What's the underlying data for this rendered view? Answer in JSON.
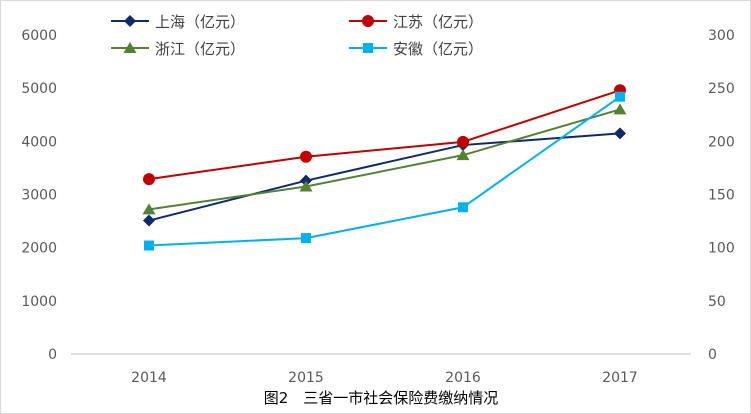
{
  "chart_data": {
    "type": "line",
    "title": "",
    "caption": "图2　三省一市社会保险费缴纳情况",
    "categories": [
      "2014",
      "2015",
      "2016",
      "2017"
    ],
    "left_axis": {
      "min": 0,
      "max": 6000,
      "step": 1000,
      "ticks": [
        "0",
        "1000",
        "2000",
        "3000",
        "4000",
        "5000",
        "6000"
      ]
    },
    "right_axis": {
      "min": 0,
      "max": 300,
      "step": 50,
      "ticks": [
        "0",
        "50",
        "100",
        "150",
        "200",
        "250",
        "300"
      ]
    },
    "grid": false,
    "legend_position": "top",
    "series": [
      {
        "name": "上海（亿元）",
        "axis": "left",
        "color": "#0d2a6b",
        "marker": "diamond",
        "values": [
          2510,
          3260,
          3930,
          4150
        ]
      },
      {
        "name": "江苏（亿元）",
        "axis": "left",
        "color": "#c00000",
        "marker": "circle",
        "values": [
          3290,
          3710,
          3990,
          4960
        ]
      },
      {
        "name": "浙江（亿元）",
        "axis": "left",
        "color": "#548235",
        "marker": "triangle",
        "values": [
          2720,
          3150,
          3740,
          4600
        ]
      },
      {
        "name": "安徽（亿元）",
        "axis": "right",
        "color": "#00b0f0",
        "marker": "square",
        "values": [
          102,
          109,
          138,
          242
        ]
      }
    ]
  }
}
